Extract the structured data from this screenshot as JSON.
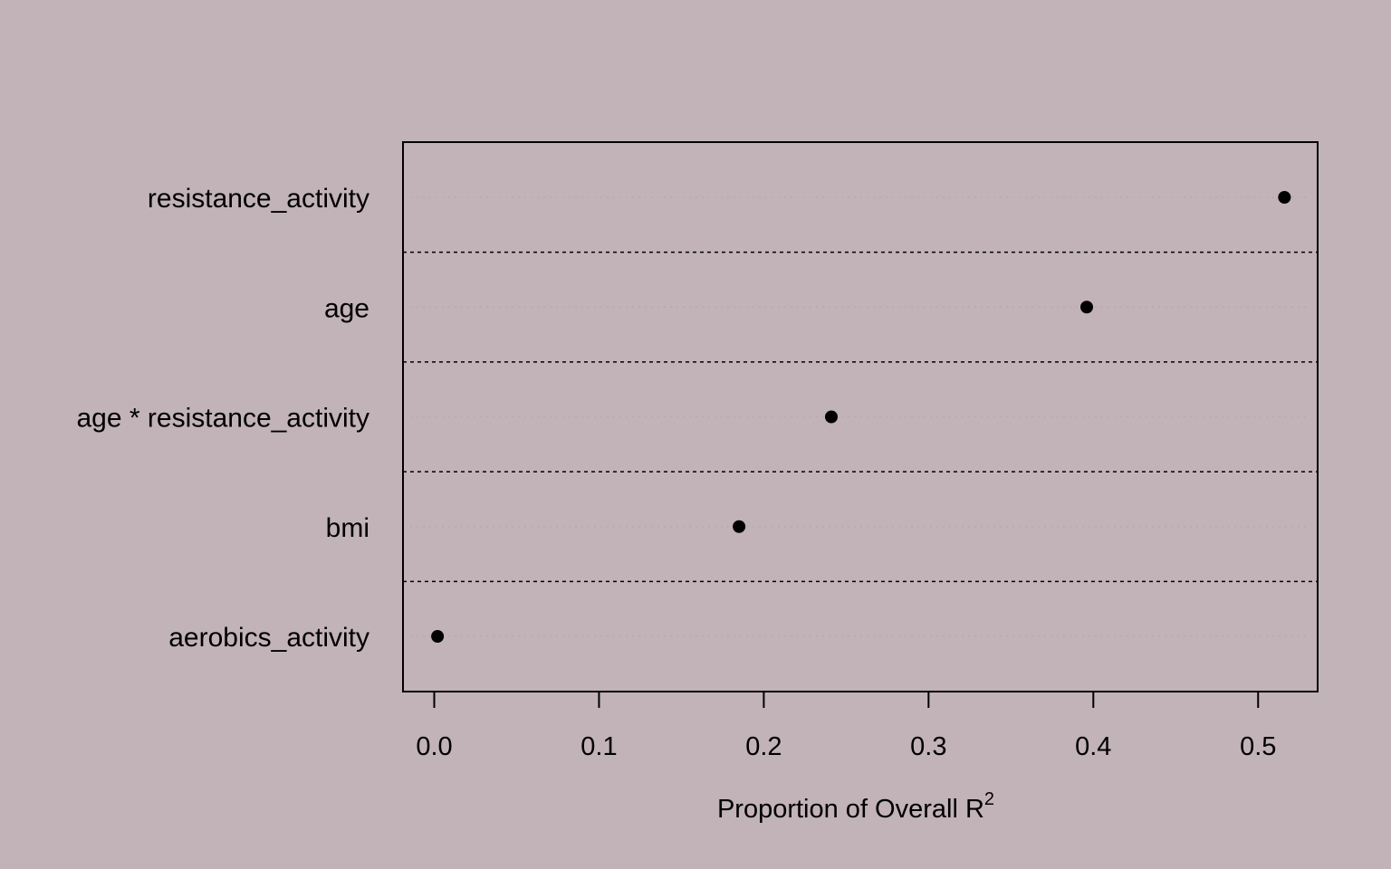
{
  "chart_data": {
    "type": "scatter",
    "subtype": "dot-plot",
    "categories": [
      "resistance_activity",
      "age",
      "age * resistance_activity",
      "bmi",
      "aerobics_activity"
    ],
    "values": [
      0.516,
      0.396,
      0.241,
      0.185,
      0.002
    ],
    "xlabel": "Proportion of Overall R",
    "xlabel_superscript": "2",
    "xlim": [
      0.0,
      0.5
    ],
    "xticks": [
      "0.0",
      "0.1",
      "0.2",
      "0.3",
      "0.4",
      "0.5"
    ],
    "grid": "dotted separators between categories",
    "colors": {
      "background": "#c2b3b8",
      "points": "#000000"
    }
  }
}
